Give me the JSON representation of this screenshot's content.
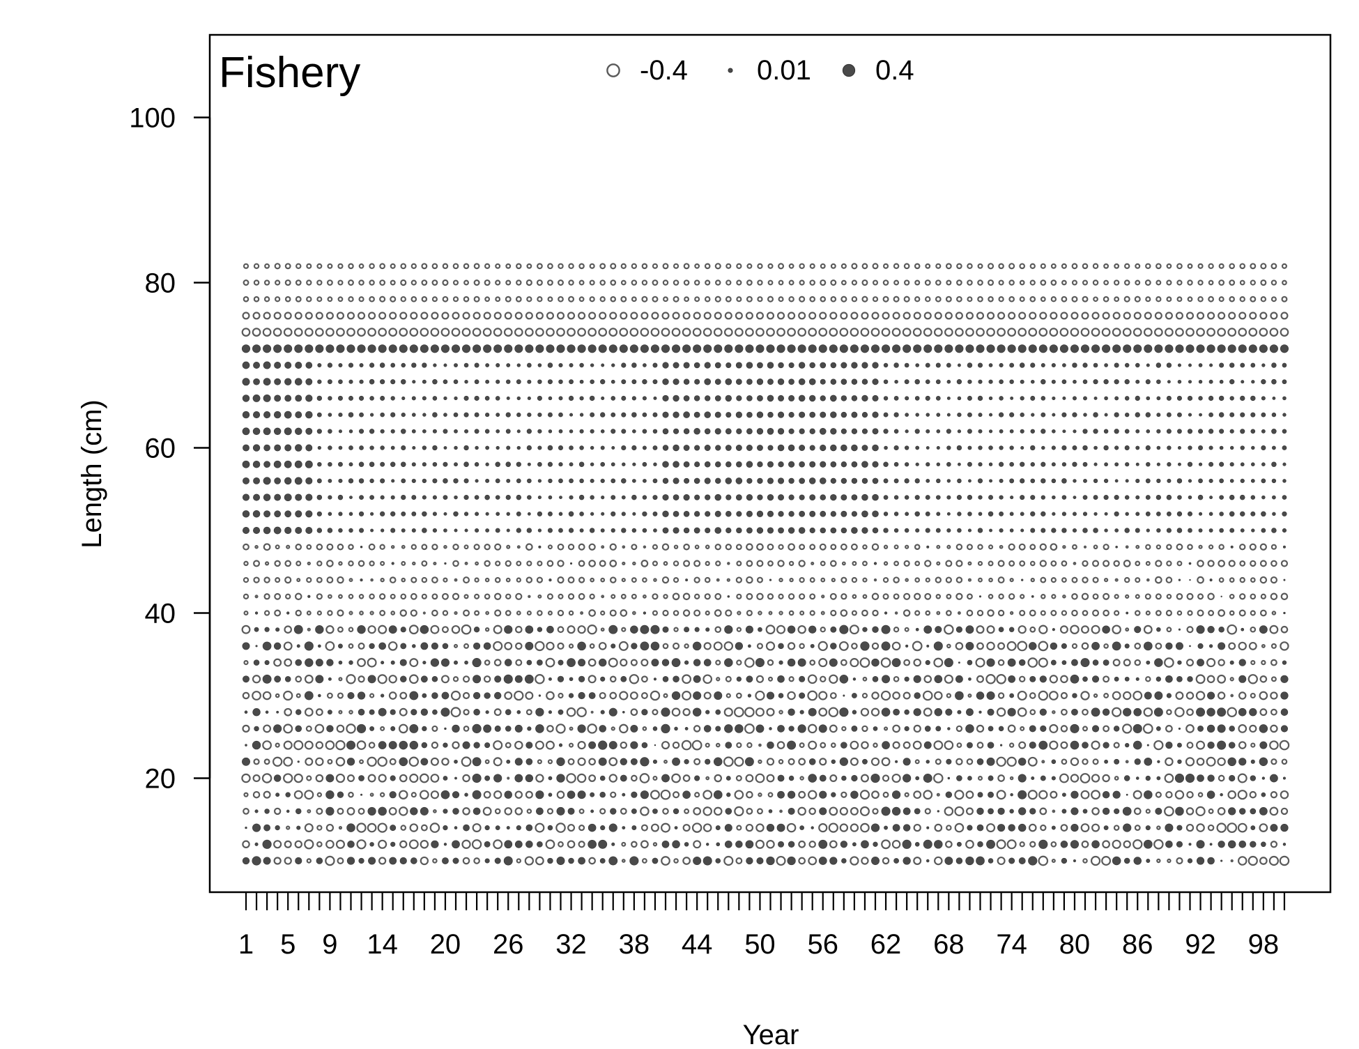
{
  "chart_data": {
    "type": "scatter",
    "title": "Fishery",
    "xlabel": "Year",
    "ylabel": "Length (cm)",
    "xlim": [
      1,
      100
    ],
    "ylim": [
      10,
      82
    ],
    "x_tick_labels": [
      "1",
      "5",
      "9",
      "14",
      "20",
      "26",
      "32",
      "38",
      "44",
      "50",
      "56",
      "62",
      "68",
      "74",
      "80",
      "86",
      "92",
      "98"
    ],
    "y_ticks": [
      20,
      40,
      60,
      80,
      100
    ],
    "years": [
      1,
      100
    ],
    "length_bins": [
      10,
      82,
      2
    ],
    "legend": {
      "position": "top-center",
      "entries": [
        {
          "label": "-0.4",
          "value": -0.4,
          "style": "open"
        },
        {
          "label": "0.01",
          "value": 0.01,
          "style": "filled"
        },
        {
          "label": "0.4",
          "value": 0.4,
          "style": "filled"
        }
      ]
    },
    "grid": false,
    "colors": {
      "filled": "#4a4a4a",
      "open_stroke": "#5a5a5a"
    }
  }
}
